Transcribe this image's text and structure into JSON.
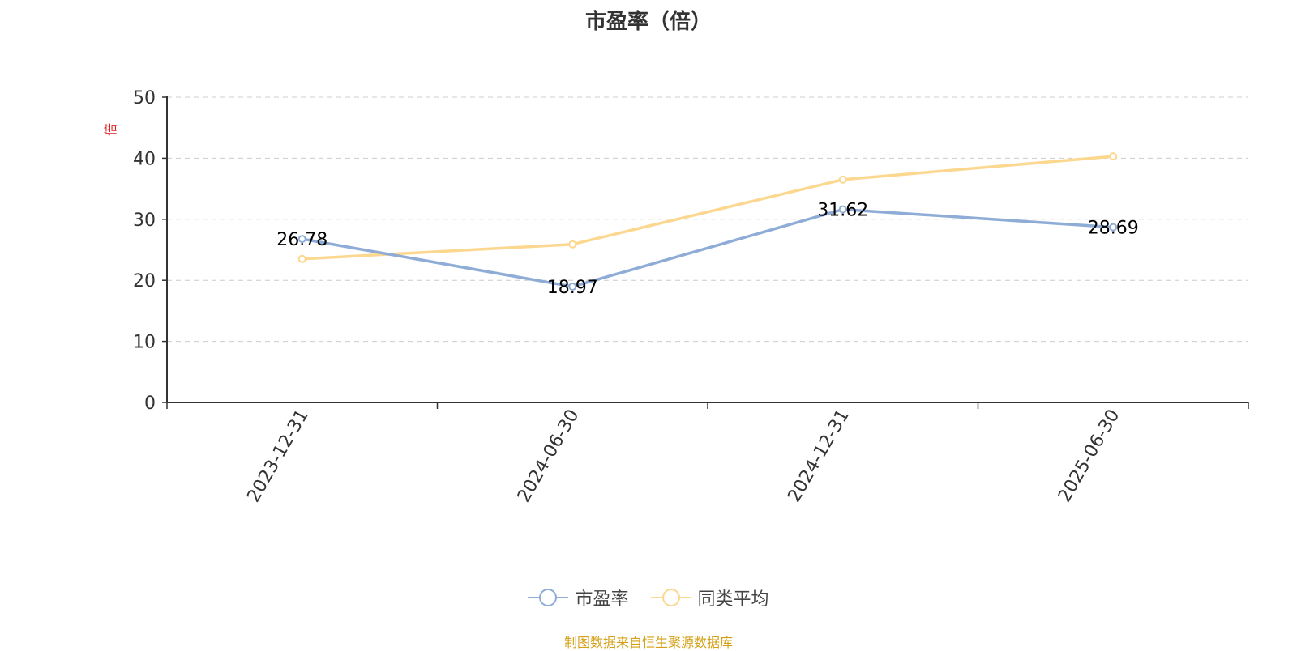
{
  "chart_data": {
    "type": "line",
    "title": "市盈率（倍）",
    "ylabel": "倍",
    "ylim": [
      0,
      50
    ],
    "yticks": [
      0,
      10,
      20,
      30,
      40,
      50
    ],
    "categories": [
      "2023-12-31",
      "2024-06-30",
      "2024-12-31",
      "2025-06-30"
    ],
    "series": [
      {
        "name": "市盈率",
        "color": "#8eacd6",
        "values": [
          26.78,
          18.97,
          31.62,
          28.69
        ],
        "labels": [
          "26.78",
          "18.97",
          "31.62",
          "28.69"
        ]
      },
      {
        "name": "同类平均",
        "color": "#fcd78f",
        "values": [
          23.5,
          25.9,
          36.5,
          40.3
        ]
      }
    ],
    "grid": true,
    "legend_position": "bottom-center"
  },
  "footer": {
    "source": "制图数据来自恒生聚源数据库",
    "source_color": "#d4a017"
  },
  "axis_label_color": "#e02020"
}
